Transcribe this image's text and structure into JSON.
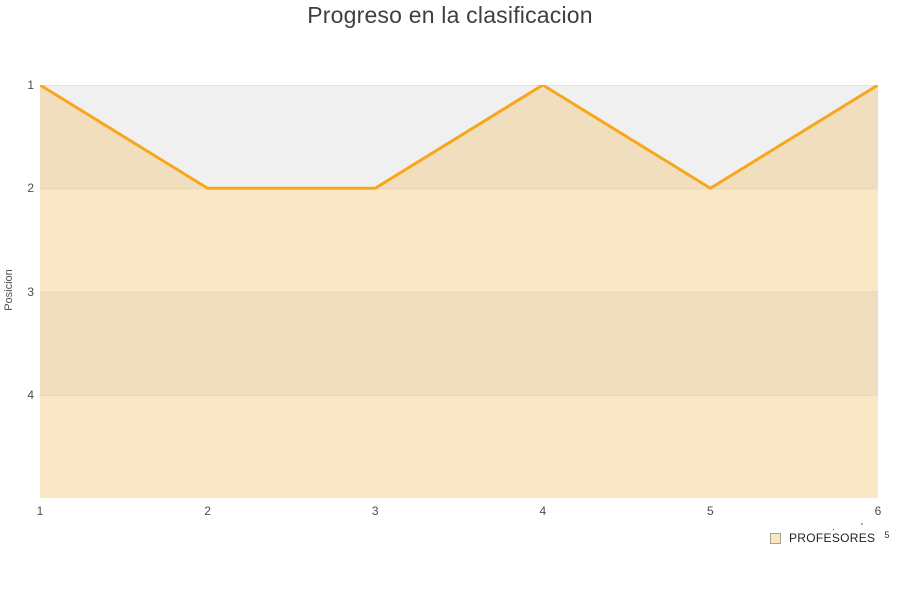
{
  "title": "Progreso en la clasificacion",
  "y_axis_title": "Posicion",
  "legend": {
    "label": "PROFESORES",
    "superscript": "5",
    "marks": [
      ".",
      "'"
    ],
    "swatch_border": "#a9a195",
    "swatch_fill": "#fae6c1"
  },
  "chart_data": {
    "type": "line",
    "title": "Progreso en la clasificacion",
    "xlabel": "",
    "ylabel": "Posicion",
    "x": [
      1,
      2,
      3,
      4,
      5,
      6
    ],
    "series": [
      {
        "name": "PROFESORES",
        "values": [
          1,
          2,
          2,
          1,
          2,
          1
        ]
      }
    ],
    "x_ticks": [
      "1",
      "2",
      "3",
      "4",
      "5",
      "6"
    ],
    "y_ticks": [
      "1",
      "2",
      "3",
      "4"
    ],
    "y_axis": {
      "min": 1,
      "max": 5,
      "inverted": true
    },
    "x_axis": {
      "min": 1,
      "max": 6
    },
    "grid": true,
    "legend_position": "bottom-right",
    "line_color": "#f7a71c",
    "fill_color": "rgba(247,168,29,0.24)",
    "band_colors": [
      "#f0f0f1",
      "#fbfbfb"
    ],
    "gridline_color": "#e2e2e2"
  }
}
